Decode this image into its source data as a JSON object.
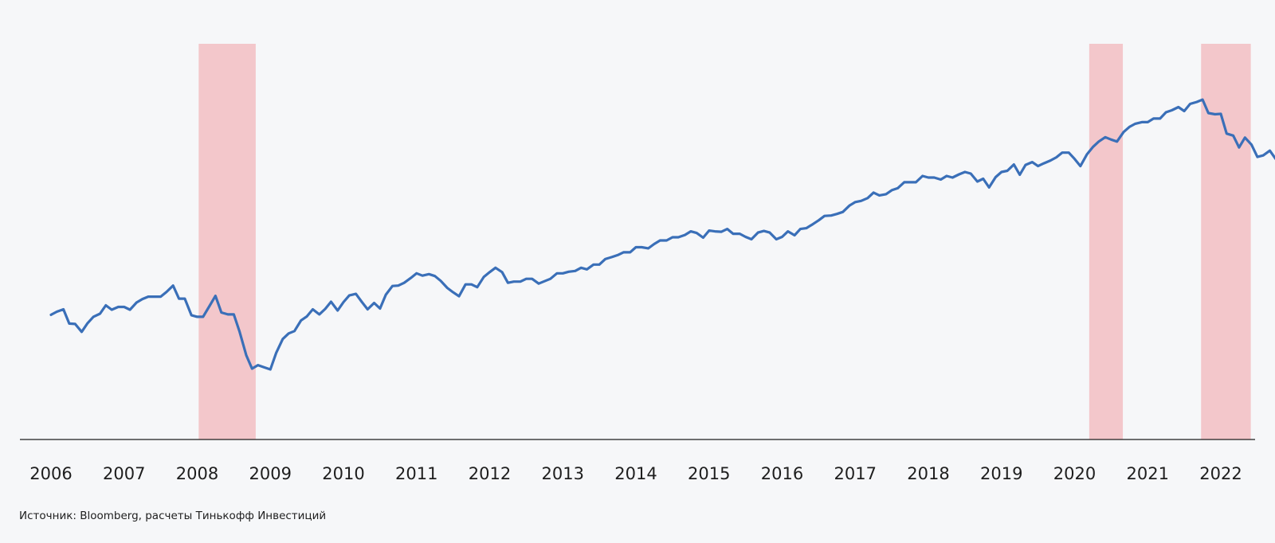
{
  "source_note": "Источник: Bloomberg, расчеты Тинькофф Инвестиций",
  "chart_data": {
    "type": "line",
    "title": "",
    "xlabel": "",
    "ylabel": "",
    "grid": false,
    "legend": "none",
    "x_tick_labels": [
      "2006",
      "2007",
      "2008",
      "2009",
      "2010",
      "2011",
      "2012",
      "2013",
      "2014",
      "2015",
      "2016",
      "2017",
      "2018",
      "2019",
      "2020",
      "2021",
      "2022"
    ],
    "xlim": [
      2006.0,
      2022.0
    ],
    "ylim": [
      0,
      100
    ],
    "line_color": "#3a6fb8",
    "band_color": "#f3c7cb",
    "shaded_periods": [
      {
        "start": 2008.02,
        "end": 2008.8
      },
      {
        "start": 2020.2,
        "end": 2020.66
      },
      {
        "start": 2021.73,
        "end": 2022.41
      }
    ],
    "series": [
      {
        "name": "",
        "points": [
          [
            2006.0,
            31.5
          ],
          [
            2006.08,
            32.3
          ],
          [
            2006.17,
            32.9
          ],
          [
            2006.25,
            29.3
          ],
          [
            2006.33,
            29.2
          ],
          [
            2006.42,
            27.2
          ],
          [
            2006.5,
            29.4
          ],
          [
            2006.58,
            31.0
          ],
          [
            2006.67,
            31.8
          ],
          [
            2006.75,
            33.9
          ],
          [
            2006.83,
            32.8
          ],
          [
            2006.92,
            33.5
          ],
          [
            2007.0,
            33.5
          ],
          [
            2007.08,
            32.8
          ],
          [
            2007.17,
            34.6
          ],
          [
            2007.25,
            35.5
          ],
          [
            2007.33,
            36.1
          ],
          [
            2007.42,
            36.1
          ],
          [
            2007.5,
            36.1
          ],
          [
            2007.58,
            37.3
          ],
          [
            2007.67,
            38.9
          ],
          [
            2007.75,
            35.6
          ],
          [
            2007.83,
            35.6
          ],
          [
            2007.92,
            31.4
          ],
          [
            2008.0,
            31.0
          ],
          [
            2008.08,
            31.0
          ],
          [
            2008.17,
            33.8
          ],
          [
            2008.25,
            36.3
          ],
          [
            2008.33,
            32.1
          ],
          [
            2008.42,
            31.6
          ],
          [
            2008.5,
            31.6
          ],
          [
            2008.58,
            27.2
          ],
          [
            2008.67,
            21.3
          ],
          [
            2008.75,
            17.9
          ],
          [
            2008.83,
            18.8
          ],
          [
            2008.92,
            18.2
          ],
          [
            2009.0,
            17.7
          ],
          [
            2009.08,
            21.9
          ],
          [
            2009.17,
            25.4
          ],
          [
            2009.25,
            26.8
          ],
          [
            2009.33,
            27.4
          ],
          [
            2009.42,
            30.1
          ],
          [
            2009.5,
            31.1
          ],
          [
            2009.58,
            32.9
          ],
          [
            2009.67,
            31.6
          ],
          [
            2009.75,
            33.0
          ],
          [
            2009.83,
            34.8
          ],
          [
            2009.92,
            32.6
          ],
          [
            2010.0,
            34.7
          ],
          [
            2010.08,
            36.4
          ],
          [
            2010.17,
            36.8
          ],
          [
            2010.25,
            34.8
          ],
          [
            2010.33,
            32.9
          ],
          [
            2010.42,
            34.5
          ],
          [
            2010.5,
            33.1
          ],
          [
            2010.58,
            36.6
          ],
          [
            2010.67,
            38.8
          ],
          [
            2010.75,
            38.9
          ],
          [
            2010.83,
            39.6
          ],
          [
            2010.92,
            40.8
          ],
          [
            2011.0,
            42.0
          ],
          [
            2011.08,
            41.4
          ],
          [
            2011.17,
            41.8
          ],
          [
            2011.25,
            41.3
          ],
          [
            2011.33,
            40.1
          ],
          [
            2011.42,
            38.3
          ],
          [
            2011.5,
            37.2
          ],
          [
            2011.58,
            36.2
          ],
          [
            2011.67,
            39.2
          ],
          [
            2011.75,
            39.2
          ],
          [
            2011.83,
            38.5
          ],
          [
            2011.92,
            41.1
          ],
          [
            2012.0,
            42.3
          ],
          [
            2012.08,
            43.4
          ],
          [
            2012.17,
            42.3
          ],
          [
            2012.25,
            39.6
          ],
          [
            2012.33,
            39.9
          ],
          [
            2012.42,
            39.9
          ],
          [
            2012.5,
            40.6
          ],
          [
            2012.58,
            40.6
          ],
          [
            2012.67,
            39.4
          ],
          [
            2012.75,
            40.0
          ],
          [
            2012.83,
            40.6
          ],
          [
            2012.92,
            42.0
          ],
          [
            2013.0,
            42.0
          ],
          [
            2013.08,
            42.4
          ],
          [
            2013.17,
            42.6
          ],
          [
            2013.25,
            43.4
          ],
          [
            2013.33,
            43.0
          ],
          [
            2013.42,
            44.2
          ],
          [
            2013.5,
            44.2
          ],
          [
            2013.58,
            45.6
          ],
          [
            2013.67,
            46.1
          ],
          [
            2013.75,
            46.6
          ],
          [
            2013.83,
            47.3
          ],
          [
            2013.92,
            47.3
          ],
          [
            2014.0,
            48.6
          ],
          [
            2014.08,
            48.6
          ],
          [
            2014.17,
            48.3
          ],
          [
            2014.25,
            49.4
          ],
          [
            2014.33,
            50.3
          ],
          [
            2014.42,
            50.3
          ],
          [
            2014.5,
            51.1
          ],
          [
            2014.58,
            51.1
          ],
          [
            2014.67,
            51.7
          ],
          [
            2014.75,
            52.6
          ],
          [
            2014.83,
            52.2
          ],
          [
            2014.92,
            51.0
          ],
          [
            2015.0,
            52.8
          ],
          [
            2015.08,
            52.6
          ],
          [
            2015.17,
            52.5
          ],
          [
            2015.25,
            53.2
          ],
          [
            2015.33,
            52.0
          ],
          [
            2015.42,
            52.0
          ],
          [
            2015.5,
            51.2
          ],
          [
            2015.58,
            50.6
          ],
          [
            2015.67,
            52.3
          ],
          [
            2015.75,
            52.7
          ],
          [
            2015.83,
            52.3
          ],
          [
            2015.92,
            50.6
          ],
          [
            2016.0,
            51.2
          ],
          [
            2016.08,
            52.6
          ],
          [
            2016.17,
            51.6
          ],
          [
            2016.25,
            53.2
          ],
          [
            2016.33,
            53.4
          ],
          [
            2016.42,
            54.4
          ],
          [
            2016.5,
            55.4
          ],
          [
            2016.58,
            56.5
          ],
          [
            2016.67,
            56.6
          ],
          [
            2016.75,
            57.0
          ],
          [
            2016.83,
            57.5
          ],
          [
            2016.92,
            59.1
          ],
          [
            2017.0,
            60.0
          ],
          [
            2017.08,
            60.3
          ],
          [
            2017.17,
            61.0
          ],
          [
            2017.25,
            62.4
          ],
          [
            2017.33,
            61.7
          ],
          [
            2017.42,
            62.0
          ],
          [
            2017.5,
            63.0
          ],
          [
            2017.58,
            63.5
          ],
          [
            2017.67,
            65.0
          ],
          [
            2017.75,
            65.0
          ],
          [
            2017.83,
            65.0
          ],
          [
            2017.92,
            66.6
          ],
          [
            2018.0,
            66.2
          ],
          [
            2018.08,
            66.2
          ],
          [
            2018.17,
            65.7
          ],
          [
            2018.25,
            66.6
          ],
          [
            2018.33,
            66.2
          ],
          [
            2018.42,
            67.0
          ],
          [
            2018.5,
            67.6
          ],
          [
            2018.58,
            67.2
          ],
          [
            2018.67,
            65.2
          ],
          [
            2018.75,
            65.9
          ],
          [
            2018.83,
            63.7
          ],
          [
            2018.92,
            66.3
          ],
          [
            2019.0,
            67.6
          ],
          [
            2019.08,
            67.9
          ],
          [
            2019.17,
            69.5
          ],
          [
            2019.25,
            66.9
          ],
          [
            2019.33,
            69.4
          ],
          [
            2019.42,
            70.1
          ],
          [
            2019.5,
            69.1
          ],
          [
            2019.58,
            69.8
          ],
          [
            2019.67,
            70.5
          ],
          [
            2019.75,
            71.3
          ],
          [
            2019.83,
            72.5
          ],
          [
            2019.92,
            72.5
          ],
          [
            2020.0,
            70.9
          ],
          [
            2020.08,
            69.1
          ],
          [
            2020.17,
            72.1
          ],
          [
            2020.25,
            73.9
          ],
          [
            2020.33,
            75.3
          ],
          [
            2020.42,
            76.4
          ],
          [
            2020.5,
            75.8
          ],
          [
            2020.58,
            75.3
          ],
          [
            2020.67,
            77.7
          ],
          [
            2020.75,
            79.0
          ],
          [
            2020.83,
            79.8
          ],
          [
            2020.92,
            80.2
          ],
          [
            2021.0,
            80.2
          ],
          [
            2021.08,
            81.1
          ],
          [
            2021.17,
            81.1
          ],
          [
            2021.25,
            82.7
          ],
          [
            2021.33,
            83.2
          ],
          [
            2021.42,
            84.0
          ],
          [
            2021.5,
            83.0
          ],
          [
            2021.58,
            84.8
          ],
          [
            2021.67,
            85.3
          ],
          [
            2021.75,
            85.9
          ],
          [
            2021.83,
            82.5
          ],
          [
            2021.92,
            82.2
          ],
          [
            2022.0,
            82.3
          ],
          [
            2022.08,
            77.3
          ],
          [
            2022.17,
            76.8
          ],
          [
            2022.25,
            73.8
          ],
          [
            2022.33,
            76.3
          ],
          [
            2022.42,
            74.5
          ],
          [
            2022.5,
            71.4
          ],
          [
            2022.58,
            71.8
          ],
          [
            2022.67,
            73.0
          ],
          [
            2022.75,
            70.9
          ]
        ]
      }
    ]
  }
}
